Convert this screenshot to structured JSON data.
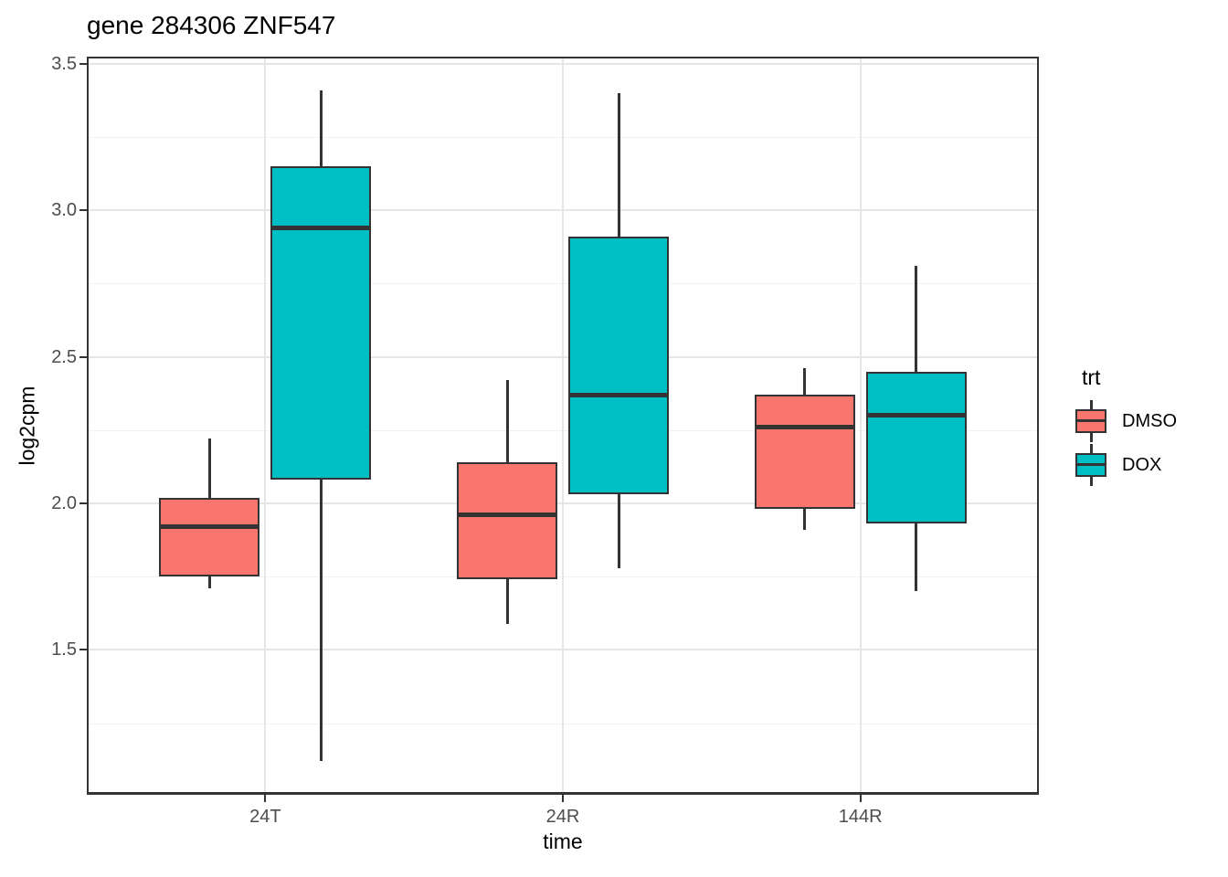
{
  "title": "gene 284306 ZNF547",
  "axes": {
    "x": {
      "label": "time",
      "categories": [
        "24T",
        "24R",
        "144R"
      ]
    },
    "y": {
      "label": "log2cpm",
      "tick_labels": [
        "3.5",
        "3.0",
        "2.5",
        "2.0",
        "1.5"
      ]
    }
  },
  "legend": {
    "title": "trt",
    "items": [
      {
        "label": "DMSO",
        "color": "#F8766D",
        "glyph": "boxplot-key-icon"
      },
      {
        "label": "DOX",
        "color": "#00BFC4",
        "glyph": "boxplot-key-icon"
      }
    ]
  },
  "colors": {
    "dmso_fill": "#F8766D",
    "dox_fill": "#00BFC4",
    "box_outline": "#333333",
    "grid_major": "#e6e6e6",
    "grid_minor": "#f2f2f2",
    "axis_text": "#4d4d4d",
    "panel_border": "#333333",
    "background": "#ffffff"
  },
  "chart_data": {
    "type": "boxplot",
    "title": "gene 284306 ZNF547",
    "xlabel": "time",
    "ylabel": "log2cpm",
    "categories": [
      "24T",
      "24R",
      "144R"
    ],
    "ylim": [
      1.01,
      3.52
    ],
    "y_major_ticks": [
      3.5,
      3.0,
      2.5,
      2.0,
      1.5
    ],
    "y_minor_ticks": [
      3.25,
      2.75,
      2.25,
      1.75,
      1.25
    ],
    "grid": true,
    "legend_title": "trt",
    "legend_position": "right",
    "dodge": true,
    "series": [
      {
        "name": "DMSO",
        "color": "#F8766D",
        "boxes": [
          {
            "category": "24T",
            "whisker_low": 1.71,
            "q1": 1.75,
            "median": 1.92,
            "q3": 2.02,
            "whisker_high": 2.22
          },
          {
            "category": "24R",
            "whisker_low": 1.59,
            "q1": 1.74,
            "median": 1.96,
            "q3": 2.14,
            "whisker_high": 2.42
          },
          {
            "category": "144R",
            "whisker_low": 1.91,
            "q1": 1.98,
            "median": 2.26,
            "q3": 2.37,
            "whisker_high": 2.46
          }
        ]
      },
      {
        "name": "DOX",
        "color": "#00BFC4",
        "boxes": [
          {
            "category": "24T",
            "whisker_low": 1.12,
            "q1": 2.08,
            "median": 2.94,
            "q3": 3.15,
            "whisker_high": 3.41
          },
          {
            "category": "24R",
            "whisker_low": 1.78,
            "q1": 2.03,
            "median": 2.37,
            "q3": 2.91,
            "whisker_high": 3.4
          },
          {
            "category": "144R",
            "whisker_low": 1.7,
            "q1": 1.93,
            "median": 2.3,
            "q3": 2.45,
            "whisker_high": 2.81
          }
        ]
      }
    ]
  }
}
